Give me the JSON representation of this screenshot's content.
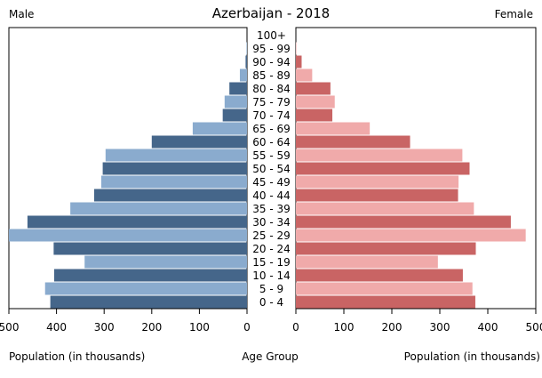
{
  "chart_data": {
    "type": "bar",
    "title": "Azerbaijan - 2018",
    "left_label": "Male",
    "right_label": "Female",
    "xlabel_left": "Population (in thousands)",
    "xlabel_center": "Age Group",
    "xlabel_right": "Population (in thousands)",
    "xlim": [
      0,
      500
    ],
    "x_ticks_left": [
      "500",
      "400",
      "300",
      "200",
      "100",
      "0"
    ],
    "x_ticks_right": [
      "0",
      "100",
      "200",
      "300",
      "400",
      "500"
    ],
    "grid": false,
    "categories": [
      "0 - 4",
      "5 - 9",
      "10 - 14",
      "15 - 19",
      "20 - 24",
      "25 - 29",
      "30 - 34",
      "35 - 39",
      "40 - 44",
      "45 - 49",
      "50 - 54",
      "55 - 59",
      "60 - 64",
      "65 - 69",
      "70 - 74",
      "75 - 79",
      "80 - 84",
      "85 - 89",
      "90 - 94",
      "95 - 99",
      "100+"
    ],
    "series": [
      {
        "name": "Male",
        "values": [
          413,
          424,
          405,
          341,
          406,
          502,
          461,
          371,
          321,
          306,
          303,
          297,
          200,
          114,
          51,
          47,
          37,
          15,
          3,
          1,
          0
        ],
        "color_dark": "#45668a",
        "color_light": "#8aabce"
      },
      {
        "name": "Female",
        "values": [
          374,
          368,
          348,
          296,
          375,
          479,
          448,
          371,
          338,
          339,
          362,
          347,
          238,
          154,
          76,
          81,
          72,
          34,
          12,
          1,
          0
        ],
        "color_dark": "#c96464",
        "color_light": "#f0aaaa"
      }
    ]
  }
}
